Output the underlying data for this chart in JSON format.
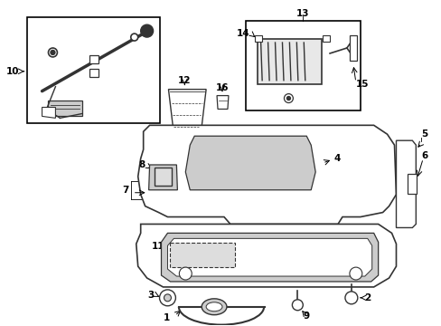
{
  "background_color": "#ffffff",
  "fig_width": 4.89,
  "fig_height": 3.6,
  "dpi": 100,
  "line_color": "#333333",
  "box_color": "#000000"
}
